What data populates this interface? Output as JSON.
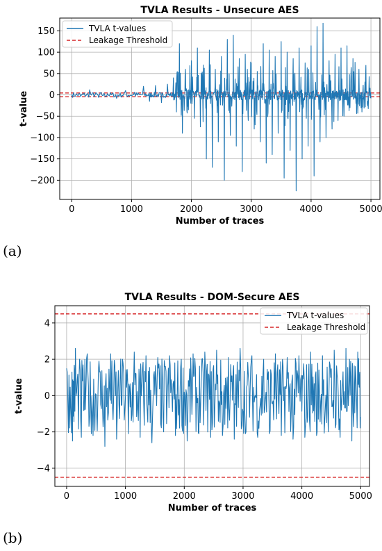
{
  "panels": [
    {
      "label": "(a)"
    },
    {
      "label": "(b)"
    }
  ],
  "chart_data": [
    {
      "type": "line",
      "title": "TVLA Results - Unsecure AES",
      "xlabel": "Number of traces",
      "ylabel": "t-value",
      "xlim": [
        -200,
        5150
      ],
      "ylim": [
        -245,
        180
      ],
      "xticks": [
        0,
        1000,
        2000,
        3000,
        4000,
        5000
      ],
      "yticks": [
        -200,
        -150,
        -100,
        -50,
        0,
        50,
        100,
        150
      ],
      "grid": true,
      "legend_position": "top-left",
      "threshold": 4.5,
      "series": [
        {
          "name": "TVLA t-values",
          "color": "#1f77b4",
          "style": "solid",
          "points": [
            [
              0,
              1
            ],
            [
              150,
              -4
            ],
            [
              300,
              12
            ],
            [
              450,
              -6
            ],
            [
              600,
              3
            ],
            [
              750,
              -8
            ],
            [
              900,
              10
            ],
            [
              1050,
              6
            ],
            [
              1200,
              20
            ],
            [
              1300,
              -15
            ],
            [
              1400,
              22
            ],
            [
              1500,
              -18
            ],
            [
              1600,
              25
            ],
            [
              1700,
              40
            ],
            [
              1750,
              -40
            ],
            [
              1800,
              120
            ],
            [
              1850,
              -90
            ],
            [
              1900,
              60
            ],
            [
              1950,
              -35
            ],
            [
              2000,
              80
            ],
            [
              2050,
              -55
            ],
            [
              2100,
              110
            ],
            [
              2150,
              -75
            ],
            [
              2200,
              70
            ],
            [
              2250,
              -150
            ],
            [
              2300,
              105
            ],
            [
              2350,
              -170
            ],
            [
              2400,
              60
            ],
            [
              2450,
              -110
            ],
            [
              2500,
              90
            ],
            [
              2550,
              -200
            ],
            [
              2600,
              130
            ],
            [
              2650,
              -95
            ],
            [
              2700,
              140
            ],
            [
              2750,
              -120
            ],
            [
              2800,
              85
            ],
            [
              2850,
              -180
            ],
            [
              2900,
              95
            ],
            [
              2950,
              -60
            ],
            [
              3000,
              75
            ],
            [
              3050,
              -80
            ],
            [
              3100,
              55
            ],
            [
              3150,
              -110
            ],
            [
              3200,
              120
            ],
            [
              3250,
              -160
            ],
            [
              3300,
              105
            ],
            [
              3350,
              -140
            ],
            [
              3400,
              90
            ],
            [
              3450,
              -90
            ],
            [
              3500,
              125
            ],
            [
              3550,
              -195
            ],
            [
              3600,
              100
            ],
            [
              3650,
              -130
            ],
            [
              3700,
              85
            ],
            [
              3750,
              -225
            ],
            [
              3800,
              110
            ],
            [
              3850,
              -150
            ],
            [
              3900,
              75
            ],
            [
              3950,
              -120
            ],
            [
              4000,
              115
            ],
            [
              4050,
              -190
            ],
            [
              4100,
              160
            ],
            [
              4150,
              -110
            ],
            [
              4200,
              168
            ],
            [
              4250,
              -100
            ],
            [
              4300,
              80
            ],
            [
              4350,
              -80
            ],
            [
              4400,
              95
            ],
            [
              4450,
              -60
            ],
            [
              4500,
              110
            ],
            [
              4550,
              -50
            ],
            [
              4600,
              115
            ],
            [
              4650,
              -30
            ],
            [
              4700,
              85
            ],
            [
              4750,
              -20
            ],
            [
              4800,
              60
            ],
            [
              4850,
              -40
            ],
            [
              4900,
              30
            ],
            [
              4950,
              -15
            ],
            [
              5000,
              -8
            ]
          ]
        },
        {
          "name": "Leakage Threshold",
          "color": "#d62728",
          "style": "dashed",
          "values": [
            4.5,
            -4.5
          ]
        }
      ]
    },
    {
      "type": "line",
      "title": "TVLA Results - DOM-Secure AES",
      "xlabel": "Number of traces",
      "ylabel": "t-value",
      "xlim": [
        -200,
        5150
      ],
      "ylim": [
        -5.0,
        4.95
      ],
      "xticks": [
        0,
        1000,
        2000,
        3000,
        4000,
        5000
      ],
      "yticks": [
        -4,
        -2,
        0,
        2,
        4
      ],
      "grid": true,
      "legend_position": "top-right",
      "threshold": 4.5,
      "series": [
        {
          "name": "TVLA t-values",
          "color": "#1f77b4",
          "style": "solid",
          "amplitude_range": [
            -2.9,
            2.7
          ],
          "points": [
            [
              0,
              1.5
            ],
            [
              100,
              -2.5
            ],
            [
              150,
              2.6
            ],
            [
              250,
              -2.3
            ],
            [
              350,
              2.3
            ],
            [
              450,
              -2.2
            ],
            [
              550,
              1.9
            ],
            [
              650,
              -2.8
            ],
            [
              750,
              2.3
            ],
            [
              850,
              -2.4
            ],
            [
              950,
              2.0
            ],
            [
              1050,
              -2.1
            ],
            [
              1150,
              2.4
            ],
            [
              1250,
              -2.3
            ],
            [
              1350,
              2.2
            ],
            [
              1450,
              -2.6
            ],
            [
              1550,
              2.1
            ],
            [
              1650,
              -2.0
            ],
            [
              1750,
              2.2
            ],
            [
              1850,
              -2.2
            ],
            [
              1950,
              2.0
            ],
            [
              2050,
              -2.5
            ],
            [
              2150,
              2.3
            ],
            [
              2250,
              -2.1
            ],
            [
              2350,
              2.4
            ],
            [
              2450,
              -2.3
            ],
            [
              2550,
              2.5
            ],
            [
              2650,
              -2.2
            ],
            [
              2750,
              2.1
            ],
            [
              2850,
              -2.4
            ],
            [
              2950,
              2.6
            ],
            [
              3050,
              -2.0
            ],
            [
              3150,
              2.2
            ],
            [
              3250,
              -2.3
            ],
            [
              3350,
              2.0
            ],
            [
              3450,
              -2.1
            ],
            [
              3550,
              2.3
            ],
            [
              3650,
              -2.2
            ],
            [
              3750,
              2.1
            ],
            [
              3850,
              -2.4
            ],
            [
              3950,
              2.2
            ],
            [
              4050,
              -2.3
            ],
            [
              4150,
              2.4
            ],
            [
              4250,
              -2.2
            ],
            [
              4350,
              2.2
            ],
            [
              4450,
              -2.0
            ],
            [
              4550,
              2.5
            ],
            [
              4650,
              -2.3
            ],
            [
              4750,
              2.6
            ],
            [
              4850,
              -2.5
            ],
            [
              4950,
              2.4
            ],
            [
              5000,
              -1.2
            ]
          ]
        },
        {
          "name": "Leakage Threshold",
          "color": "#d62728",
          "style": "dashed",
          "values": [
            4.5,
            -4.5
          ]
        }
      ]
    }
  ]
}
